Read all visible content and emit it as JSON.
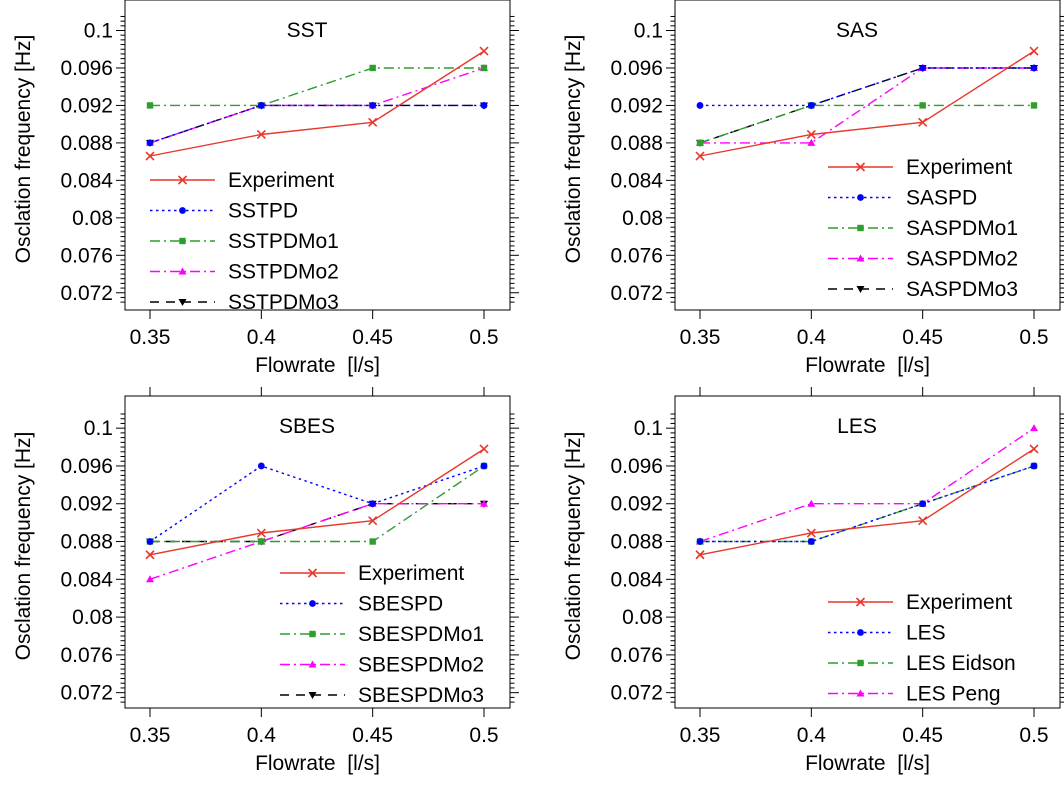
{
  "chart_data": [
    {
      "type": "line",
      "title": "SST",
      "xlabel": "Flowrate  [l/s]",
      "ylabel": "Osclation frequency [Hz]",
      "x": [
        0.35,
        0.4,
        0.45,
        0.5
      ],
      "xticks": [
        "0.35",
        "0.4",
        "0.45",
        "0.5"
      ],
      "yticks": [
        "0.072",
        "0.076",
        "0.08",
        "0.084",
        "0.088",
        "0.092",
        "0.096",
        "0.1"
      ],
      "xlim": [
        0.35,
        0.5
      ],
      "ylim": [
        0.0708,
        0.1033
      ],
      "legend_position": "lower-center",
      "series": [
        {
          "name": "Experiment",
          "color": "#e8372b",
          "dash": "solid",
          "marker": "x",
          "values": [
            0.0866,
            0.0889,
            0.0902,
            0.0978
          ]
        },
        {
          "name": "SSTPD",
          "color": "#0000ff",
          "dash": "dot",
          "marker": "circle",
          "values": [
            0.088,
            0.092,
            0.092,
            0.092
          ]
        },
        {
          "name": "SSTPDMo1",
          "color": "#2e9e2e",
          "dash": "dashdot",
          "marker": "square",
          "values": [
            0.092,
            0.092,
            0.096,
            0.096
          ]
        },
        {
          "name": "SSTPDMo2",
          "color": "#ff00ff",
          "dash": "dashdot",
          "marker": "triangle-up",
          "values": [
            0.088,
            0.092,
            0.092,
            0.096
          ]
        },
        {
          "name": "SSTPDMo3",
          "color": "#000000",
          "dash": "dash",
          "marker": "triangle-down",
          "values": [
            0.088,
            0.092,
            0.092,
            0.092
          ]
        }
      ]
    },
    {
      "type": "line",
      "title": "SAS",
      "xlabel": "Flowrate  [l/s]",
      "ylabel": "Osclation frequency [Hz]",
      "x": [
        0.35,
        0.4,
        0.45,
        0.5
      ],
      "xticks": [
        "0.35",
        "0.4",
        "0.45",
        "0.5"
      ],
      "yticks": [
        "0.072",
        "0.076",
        "0.08",
        "0.084",
        "0.088",
        "0.092",
        "0.096",
        "0.1"
      ],
      "xlim": [
        0.35,
        0.5
      ],
      "ylim": [
        0.0708,
        0.1033
      ],
      "legend_position": "lower-right",
      "series": [
        {
          "name": "Experiment",
          "color": "#e8372b",
          "dash": "solid",
          "marker": "x",
          "values": [
            0.0866,
            0.0889,
            0.0902,
            0.0978
          ]
        },
        {
          "name": "SASPD",
          "color": "#0000ff",
          "dash": "dot",
          "marker": "circle",
          "values": [
            0.092,
            0.092,
            0.096,
            0.096
          ]
        },
        {
          "name": "SASPDMo1",
          "color": "#2e9e2e",
          "dash": "dashdot",
          "marker": "square",
          "values": [
            0.088,
            0.092,
            0.092,
            0.092
          ]
        },
        {
          "name": "SASPDMo2",
          "color": "#ff00ff",
          "dash": "dashdot",
          "marker": "triangle-up",
          "values": [
            0.088,
            0.088,
            0.096,
            0.096
          ]
        },
        {
          "name": "SASPDMo3",
          "color": "#000000",
          "dash": "dash",
          "marker": "triangle-down",
          "values": [
            0.088,
            0.092,
            0.096,
            0.096
          ]
        }
      ]
    },
    {
      "type": "line",
      "title": "SBES",
      "xlabel": "Flowrate  [l/s]",
      "ylabel": "Osclation frequency [Hz]",
      "x": [
        0.35,
        0.4,
        0.45,
        0.5
      ],
      "xticks": [
        "0.35",
        "0.4",
        "0.45",
        "0.5"
      ],
      "yticks": [
        "0.072",
        "0.076",
        "0.08",
        "0.084",
        "0.088",
        "0.092",
        "0.096",
        "0.1"
      ],
      "xlim": [
        0.35,
        0.5
      ],
      "ylim": [
        0.0708,
        0.1033
      ],
      "legend_position": "lower-right",
      "series": [
        {
          "name": "Experiment",
          "color": "#e8372b",
          "dash": "solid",
          "marker": "x",
          "values": [
            0.0866,
            0.0889,
            0.0902,
            0.0978
          ]
        },
        {
          "name": "SBESPD",
          "color": "#0000ff",
          "dash": "dot",
          "marker": "circle",
          "values": [
            0.088,
            0.096,
            0.092,
            0.096
          ]
        },
        {
          "name": "SBESPDMo1",
          "color": "#2e9e2e",
          "dash": "dashdot",
          "marker": "square",
          "values": [
            0.088,
            0.088,
            0.088,
            0.096
          ]
        },
        {
          "name": "SBESPDMo2",
          "color": "#ff00ff",
          "dash": "dashdot",
          "marker": "triangle-up",
          "values": [
            0.084,
            0.088,
            0.092,
            0.092
          ]
        },
        {
          "name": "SBESPDMo3",
          "color": "#000000",
          "dash": "dash",
          "marker": "triangle-down",
          "values": [
            0.088,
            0.088,
            0.092,
            0.092
          ]
        }
      ]
    },
    {
      "type": "line",
      "title": "LES",
      "xlabel": "Flowrate  [l/s]",
      "ylabel": "Osclation frequency [Hz]",
      "x": [
        0.35,
        0.4,
        0.45,
        0.5
      ],
      "xticks": [
        "0.35",
        "0.4",
        "0.45",
        "0.5"
      ],
      "yticks": [
        "0.072",
        "0.076",
        "0.08",
        "0.084",
        "0.088",
        "0.092",
        "0.096",
        "0.1"
      ],
      "xlim": [
        0.35,
        0.5
      ],
      "ylim": [
        0.0708,
        0.1033
      ],
      "legend_position": "lower-right",
      "series": [
        {
          "name": "Experiment",
          "color": "#e8372b",
          "dash": "solid",
          "marker": "x",
          "values": [
            0.0866,
            0.0889,
            0.0902,
            0.0978
          ]
        },
        {
          "name": "LES",
          "color": "#0000ff",
          "dash": "dot",
          "marker": "circle",
          "values": [
            0.088,
            0.088,
            0.092,
            0.096
          ]
        },
        {
          "name": "LES Eidson",
          "color": "#2e9e2e",
          "dash": "dashdot",
          "marker": "square",
          "values": [
            0.088,
            0.088,
            0.092,
            0.096
          ]
        },
        {
          "name": "LES Peng",
          "color": "#ff00ff",
          "dash": "dashdot",
          "marker": "triangle-up",
          "values": [
            0.088,
            0.092,
            0.092,
            0.1
          ]
        }
      ]
    }
  ]
}
